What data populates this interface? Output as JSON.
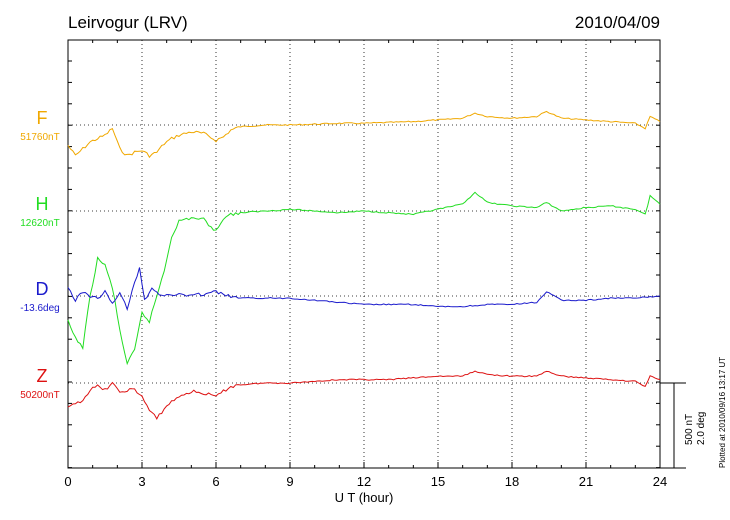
{
  "header": {
    "station": "Leirvogur (LRV)",
    "date": "2010/04/09"
  },
  "plotted_at": "Plotted at 2010/09/16 13:17 UT",
  "scale_bar": {
    "nt_label": "500 nT",
    "deg_label": "2.0 deg"
  },
  "chart_data": {
    "type": "line",
    "title": "Leirvogur (LRV)",
    "xlabel": "U T (hour)",
    "ylabel": "",
    "xlim": [
      0,
      24
    ],
    "x_ticks": [
      "0",
      "3",
      "6",
      "9",
      "12",
      "15",
      "18",
      "21",
      "24"
    ],
    "grid": true,
    "series": [
      {
        "name": "F",
        "baseline_label": "51760nT",
        "color": "#f0a800",
        "x": [
          0,
          0.3,
          0.6,
          0.9,
          1.2,
          1.5,
          1.8,
          2.1,
          2.4,
          2.7,
          3.0,
          3.3,
          3.6,
          3.9,
          4.2,
          4.5,
          5.0,
          5.5,
          6.0,
          6.3,
          6.6,
          7.0,
          8.0,
          9.0,
          10.0,
          11.0,
          12.0,
          13.0,
          14.0,
          15.0,
          16.0,
          16.5,
          17.0,
          18.0,
          19.0,
          19.4,
          20.0,
          21.0,
          22.0,
          23.0,
          23.4,
          23.6,
          24.0
        ],
        "y": [
          -120,
          -180,
          -140,
          -100,
          -80,
          -60,
          -20,
          -140,
          -180,
          -160,
          -150,
          -180,
          -160,
          -110,
          -80,
          -60,
          -40,
          -50,
          -90,
          -70,
          -30,
          -10,
          0,
          0,
          5,
          10,
          10,
          15,
          20,
          30,
          40,
          70,
          50,
          40,
          50,
          80,
          40,
          30,
          20,
          10,
          -20,
          50,
          20
        ]
      },
      {
        "name": "H",
        "baseline_label": "12620nT",
        "color": "#22dd22",
        "x": [
          0,
          0.3,
          0.6,
          0.9,
          1.2,
          1.5,
          1.8,
          2.1,
          2.4,
          2.7,
          3.0,
          3.3,
          3.6,
          3.9,
          4.2,
          4.5,
          5.0,
          5.5,
          6.0,
          6.3,
          6.6,
          7.0,
          8.0,
          9.0,
          10.0,
          11.0,
          12.0,
          13.0,
          14.0,
          15.0,
          16.0,
          16.5,
          17.0,
          18.0,
          19.0,
          19.4,
          20.0,
          21.0,
          22.0,
          23.0,
          23.4,
          23.6,
          24.0
        ],
        "y": [
          -650,
          -750,
          -800,
          -500,
          -280,
          -320,
          -450,
          -700,
          -900,
          -820,
          -600,
          -650,
          -500,
          -350,
          -150,
          -60,
          -40,
          -50,
          -120,
          -40,
          -20,
          -10,
          0,
          10,
          0,
          -10,
          0,
          -10,
          -20,
          10,
          40,
          110,
          50,
          30,
          20,
          50,
          0,
          20,
          30,
          10,
          -20,
          90,
          40
        ]
      },
      {
        "name": "D",
        "baseline_label": "-13.6deg",
        "color": "#1a1acc",
        "x": [
          0,
          0.3,
          0.6,
          0.9,
          1.2,
          1.5,
          1.8,
          2.1,
          2.4,
          2.7,
          2.9,
          3.1,
          3.4,
          3.7,
          4.0,
          4.5,
          5.0,
          5.5,
          6.0,
          6.5,
          7.0,
          8.0,
          9.0,
          10.0,
          11.0,
          12.0,
          13.0,
          14.0,
          15.0,
          16.0,
          17.0,
          18.0,
          19.0,
          19.4,
          20.0,
          21.0,
          22.0,
          23.0,
          24.0
        ],
        "y": [
          0.2,
          -0.1,
          0.1,
          0.0,
          -0.05,
          0.1,
          -0.2,
          0.1,
          -0.3,
          0.3,
          0.7,
          -0.1,
          0.2,
          0.05,
          0.0,
          0.05,
          0.0,
          0.05,
          0.1,
          0.0,
          -0.05,
          -0.05,
          -0.05,
          -0.1,
          -0.15,
          -0.2,
          -0.2,
          -0.2,
          -0.25,
          -0.25,
          -0.2,
          -0.2,
          -0.15,
          0.1,
          -0.1,
          -0.1,
          -0.05,
          -0.05,
          0.0
        ]
      },
      {
        "name": "Z",
        "baseline_label": "50200nT",
        "color": "#dd1111",
        "x": [
          0,
          0.3,
          0.6,
          0.9,
          1.2,
          1.5,
          1.8,
          2.1,
          2.4,
          2.7,
          3.0,
          3.3,
          3.6,
          3.9,
          4.2,
          4.5,
          5.0,
          5.5,
          6.0,
          6.3,
          6.6,
          7.0,
          8.0,
          9.0,
          10.0,
          11.0,
          12.0,
          13.0,
          14.0,
          15.0,
          16.0,
          16.5,
          17.0,
          18.0,
          19.0,
          19.4,
          20.0,
          21.0,
          22.0,
          23.0,
          23.4,
          23.6,
          24.0
        ],
        "y": [
          -150,
          -120,
          -100,
          -40,
          -20,
          -40,
          0,
          -60,
          -40,
          -40,
          -80,
          -160,
          -210,
          -150,
          -110,
          -80,
          -50,
          -60,
          -80,
          -50,
          -20,
          -10,
          0,
          0,
          10,
          20,
          20,
          20,
          30,
          40,
          40,
          70,
          50,
          40,
          40,
          70,
          40,
          30,
          20,
          10,
          -20,
          40,
          20
        ]
      }
    ]
  }
}
